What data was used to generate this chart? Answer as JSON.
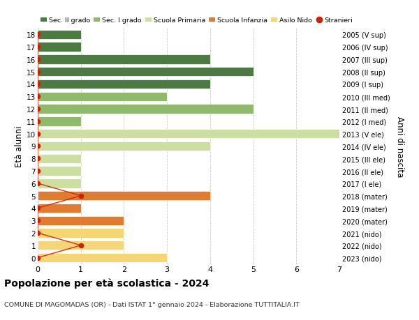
{
  "title": "Popolazione per età scolastica - 2024",
  "subtitle": "COMUNE DI MAGOMADAS (OR) - Dati ISTAT 1° gennaio 2024 - Elaborazione TUTTITALIA.IT",
  "ylabel_left": "Età alunni",
  "ylabel_right": "Anni di nascita",
  "xlim": [
    0,
    7
  ],
  "ages": [
    0,
    1,
    2,
    3,
    4,
    5,
    6,
    7,
    8,
    9,
    10,
    11,
    12,
    13,
    14,
    15,
    16,
    17,
    18
  ],
  "right_labels": [
    "2023 (nido)",
    "2022 (nido)",
    "2021 (nido)",
    "2020 (mater)",
    "2019 (mater)",
    "2018 (mater)",
    "2017 (I ele)",
    "2016 (II ele)",
    "2015 (III ele)",
    "2014 (IV ele)",
    "2013 (V ele)",
    "2012 (I med)",
    "2011 (II med)",
    "2010 (III med)",
    "2009 (I sup)",
    "2008 (II sup)",
    "2007 (III sup)",
    "2006 (IV sup)",
    "2005 (V sup)"
  ],
  "bar_values": [
    3,
    2,
    2,
    2,
    1,
    4,
    1,
    1,
    1,
    4,
    7,
    1,
    5,
    3,
    4,
    5,
    4,
    1,
    1
  ],
  "bar_colors": [
    "#F5D576",
    "#F5D576",
    "#F5D576",
    "#E07B30",
    "#E07B30",
    "#E07B30",
    "#CCDFA0",
    "#CCDFA0",
    "#CCDFA0",
    "#CCDFA0",
    "#CCDFA0",
    "#8FB96B",
    "#8FB96B",
    "#8FB96B",
    "#4D7A43",
    "#4D7A43",
    "#4D7A43",
    "#4D7A43",
    "#4D7A43"
  ],
  "stranieri_x": [
    0,
    1,
    0,
    0,
    0,
    1,
    0,
    0,
    0,
    0,
    0,
    0,
    0,
    0,
    0,
    0,
    0,
    0,
    0
  ],
  "legend_labels": [
    "Sec. II grado",
    "Sec. I grado",
    "Scuola Primaria",
    "Scuola Infanzia",
    "Asilo Nido",
    "Stranieri"
  ],
  "legend_colors": [
    "#4D7A43",
    "#8FB96B",
    "#CCDFA0",
    "#E07B30",
    "#F5D576",
    "#CC2200"
  ],
  "background_color": "#FFFFFF",
  "grid_color": "#CCCCCC",
  "bar_height": 0.75,
  "clip_bars": true
}
